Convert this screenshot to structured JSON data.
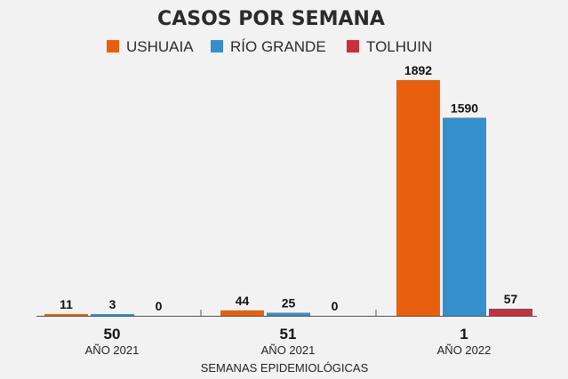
{
  "chart_data": {
    "type": "bar",
    "title": "CASOS POR SEMANA",
    "xlabel": "SEMANAS EPIDEMIOLÓGICAS",
    "ylabel": "",
    "categories": [
      {
        "week": "50",
        "year": "AÑO 2021"
      },
      {
        "week": "51",
        "year": "AÑO 2021"
      },
      {
        "week": "1",
        "year": "AÑO 2022"
      }
    ],
    "series": [
      {
        "name": "USHUAIA",
        "color": "#e8600e",
        "values": [
          11,
          44,
          1892
        ]
      },
      {
        "name": "RÍO GRANDE",
        "color": "#3490cc",
        "values": [
          3,
          25,
          1590
        ]
      },
      {
        "name": "TOLHUIN",
        "color": "#c8303f",
        "values": [
          0,
          0,
          57
        ]
      }
    ],
    "ylim": [
      0,
      1892
    ],
    "grid": false,
    "legend_position": "top-center",
    "data_labels": true
  }
}
